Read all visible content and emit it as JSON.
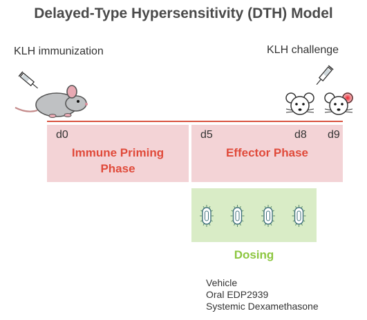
{
  "title": "Delayed-Type Hypersensitivity (DTH) Model",
  "immunization_label": "KLH immunization",
  "challenge_label": "KLH challenge",
  "days": {
    "d0": "d0",
    "d5": "d5",
    "d8": "d8",
    "d9": "d9"
  },
  "phases": {
    "priming": {
      "line1": "Immune Priming",
      "line2": "Phase"
    },
    "effector": {
      "line1": "Effector Phase"
    }
  },
  "dosing": {
    "label": "Dosing",
    "pill_count": 4,
    "conditions": [
      "Vehicle",
      "Oral EDP2939",
      "Systemic Dexamethasone"
    ]
  },
  "colors": {
    "timeline": "#d9523f",
    "phase_fill": "#f3d3d6",
    "phase_text": "#e04a3a",
    "dosing_fill": "#d9ecc6",
    "dosing_text": "#8cc63f",
    "inflammation": "#e8202a"
  },
  "icons": [
    "syringe-icon",
    "mouse-icon",
    "mouse-face-icon",
    "pill-icon"
  ]
}
